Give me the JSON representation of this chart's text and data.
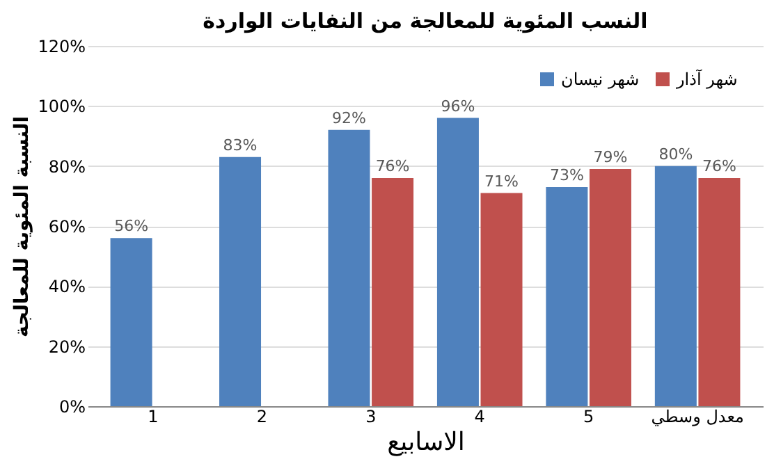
{
  "chart_data": {
    "type": "bar",
    "title": "النسب المئوية للمعالجة من النفايات الواردة",
    "xlabel": "الاسابيع",
    "ylabel": "النسبة المئوية للمعالجة",
    "categories": [
      "1",
      "2",
      "3",
      "4",
      "5",
      "معدل وسطي"
    ],
    "series": [
      {
        "name": "شهر نيسان",
        "color": "#4f81bd",
        "values": [
          56,
          83,
          92,
          96,
          73,
          80
        ],
        "value_labels": [
          "56%",
          "83%",
          "92%",
          "96%",
          "73%",
          "80%"
        ]
      },
      {
        "name": "شهر آذار",
        "color": "#c0504d",
        "values": [
          null,
          null,
          76,
          71,
          79,
          76
        ],
        "value_labels": [
          null,
          null,
          "76%",
          "71%",
          "79%",
          "76%"
        ]
      }
    ],
    "ylim": [
      0,
      120
    ],
    "yticks": [
      {
        "value": 0,
        "label": "0%"
      },
      {
        "value": 20,
        "label": "20%"
      },
      {
        "value": 40,
        "label": "40%"
      },
      {
        "value": 60,
        "label": "60%"
      },
      {
        "value": 80,
        "label": "80%"
      },
      {
        "value": 100,
        "label": "100%"
      },
      {
        "value": 120,
        "label": "120%"
      }
    ],
    "grid": "y",
    "legend": "top right"
  }
}
